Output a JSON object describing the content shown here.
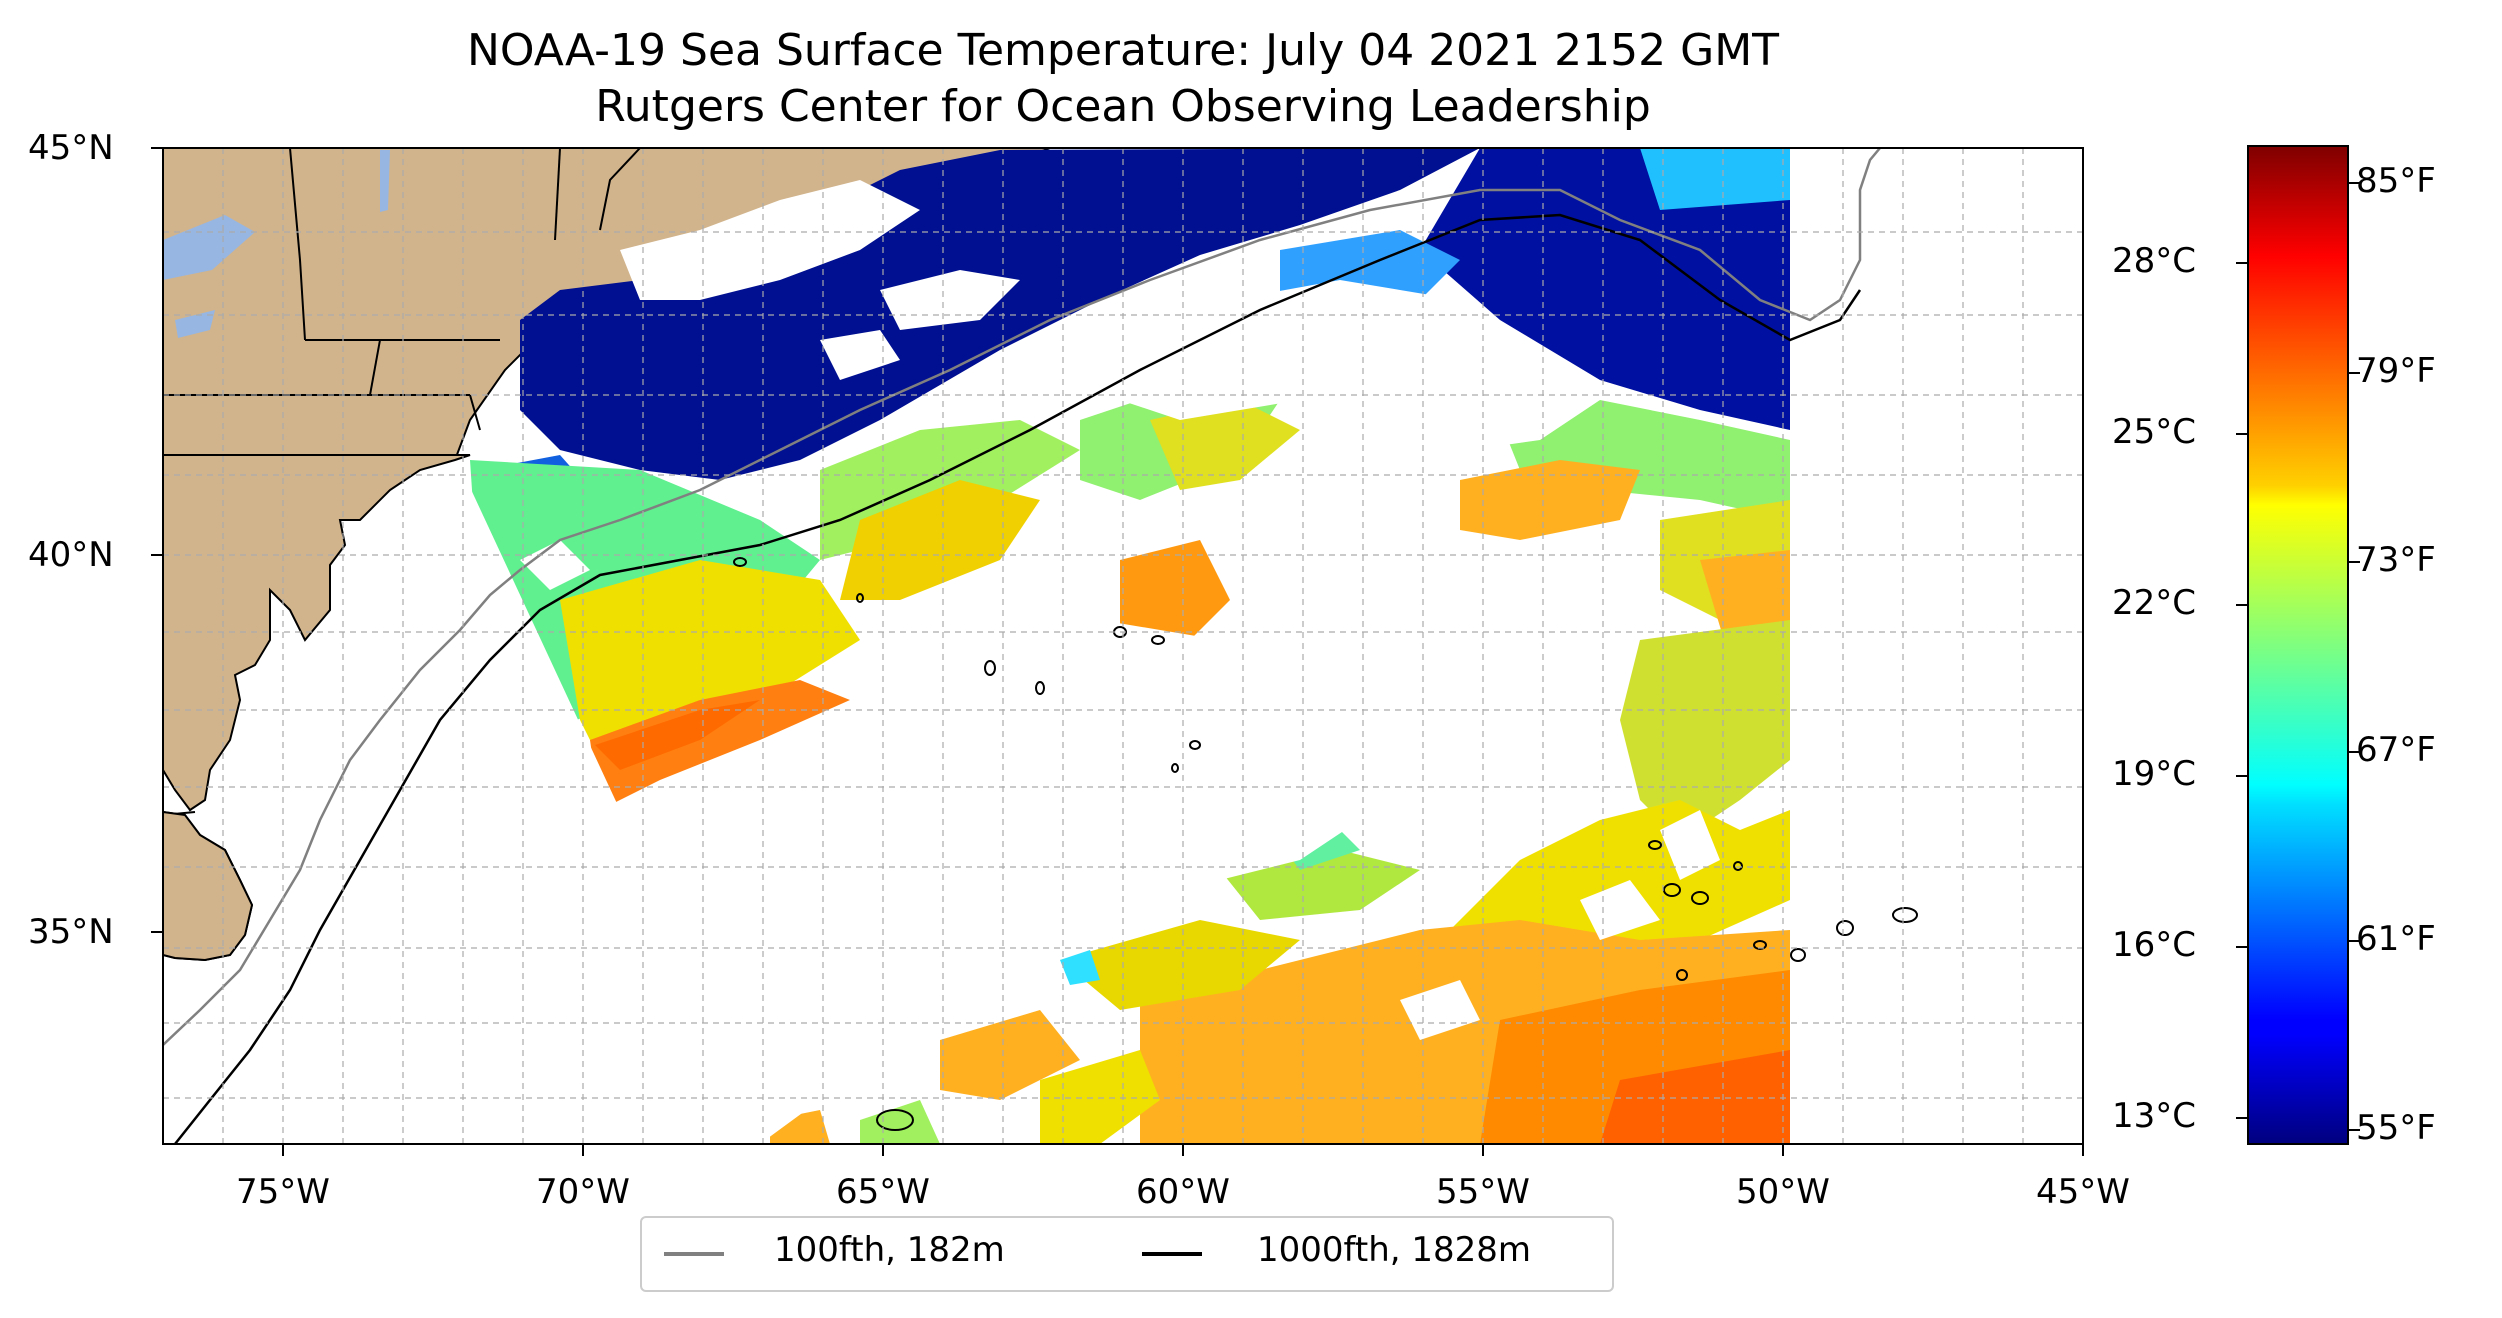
{
  "title": {
    "line1": "NOAA-19 Sea Surface Temperature: July 04 2021 2152 GMT",
    "line2": "Rutgers Center for Ocean Observing Leadership"
  },
  "map": {
    "lat_range": [
      32.2,
      45.0
    ],
    "lon_range": [
      -77.0,
      -45.0
    ],
    "lat_ticks": [
      {
        "value": 45,
        "label": "45°N"
      },
      {
        "value": 40,
        "label": "40°N"
      },
      {
        "value": 35,
        "label": "35°N"
      }
    ],
    "lon_ticks": [
      {
        "value": -75,
        "label": "75°W"
      },
      {
        "value": -70,
        "label": "70°W"
      },
      {
        "value": -65,
        "label": "65°W"
      },
      {
        "value": -60,
        "label": "60°W"
      },
      {
        "value": -55,
        "label": "55°W"
      },
      {
        "value": -50,
        "label": "50°W"
      },
      {
        "value": -45,
        "label": "45°W"
      }
    ],
    "grid": "dashed, 1° spacing",
    "land_color": "#d2b48c",
    "lake_color": "#97b6e1"
  },
  "legend": {
    "placement": "bottom-center",
    "items": [
      {
        "label": "100fth, 182m",
        "color": "#808080"
      },
      {
        "label": "1000fth, 1828m",
        "color": "#000000"
      }
    ]
  },
  "colorbar": {
    "colormap": "jet",
    "range_c": [
      12.5,
      30.0
    ],
    "celsius_ticks": [
      {
        "value": 13,
        "label": "13°C"
      },
      {
        "value": 16,
        "label": "16°C"
      },
      {
        "value": 19,
        "label": "19°C"
      },
      {
        "value": 22,
        "label": "22°C"
      },
      {
        "value": 25,
        "label": "25°C"
      },
      {
        "value": 28,
        "label": "28°C"
      }
    ],
    "fahrenheit_ticks": [
      {
        "value": 55,
        "label": "55°F"
      },
      {
        "value": 61,
        "label": "61°F"
      },
      {
        "value": 67,
        "label": "67°F"
      },
      {
        "value": 73,
        "label": "73°F"
      },
      {
        "value": 79,
        "label": "79°F"
      },
      {
        "value": 85,
        "label": "85°F"
      }
    ]
  }
}
